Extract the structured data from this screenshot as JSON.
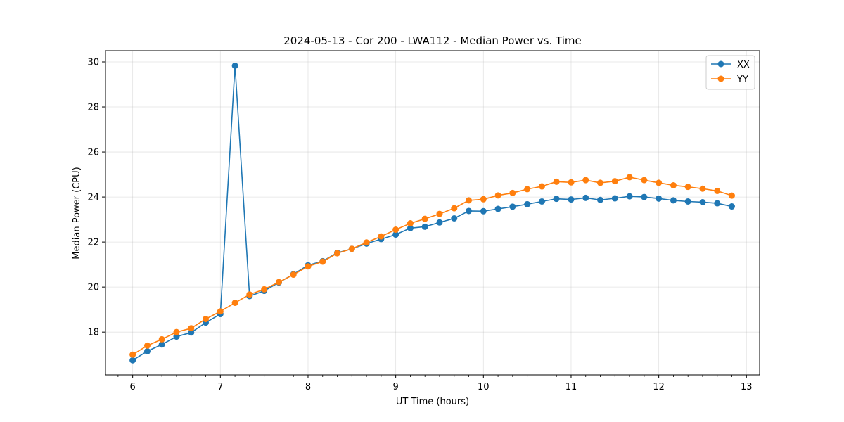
{
  "chart_data": {
    "type": "line",
    "title": "2024-05-13 - Cor 200 - LWA112 - Median Power vs. Time",
    "xlabel": "UT Time (hours)",
    "ylabel": "Median Power (CPU)",
    "xlim": [
      5.69,
      13.15
    ],
    "ylim": [
      16.1,
      30.5
    ],
    "grid": true,
    "legend_position": "top-right",
    "x_ticks": [
      6,
      7,
      8,
      9,
      10,
      11,
      12,
      13
    ],
    "y_ticks": [
      18,
      20,
      22,
      24,
      26,
      28,
      30
    ],
    "x_tick_labels": [
      "6",
      "7",
      "8",
      "9",
      "10",
      "11",
      "12",
      "13"
    ],
    "y_tick_labels": [
      "18",
      "20",
      "22",
      "24",
      "26",
      "28",
      "30"
    ],
    "x": [
      6.0,
      6.167,
      6.333,
      6.5,
      6.667,
      6.833,
      7.0,
      7.167,
      7.333,
      7.5,
      7.667,
      7.833,
      8.0,
      8.167,
      8.333,
      8.5,
      8.667,
      8.833,
      9.0,
      9.167,
      9.333,
      9.5,
      9.667,
      9.833,
      10.0,
      10.167,
      10.333,
      10.5,
      10.667,
      10.833,
      11.0,
      11.167,
      11.333,
      11.5,
      11.667,
      11.833,
      12.0,
      12.167,
      12.333,
      12.5,
      12.667,
      12.833
    ],
    "series": [
      {
        "name": "XX",
        "color": "#1f77b4",
        "values": [
          16.75,
          17.15,
          17.45,
          17.8,
          17.98,
          18.42,
          18.8,
          29.83,
          19.6,
          19.83,
          20.2,
          20.57,
          20.97,
          21.15,
          21.52,
          21.7,
          21.93,
          22.13,
          22.33,
          22.62,
          22.68,
          22.87,
          23.05,
          23.38,
          23.37,
          23.47,
          23.57,
          23.68,
          23.8,
          23.92,
          23.89,
          23.96,
          23.87,
          23.94,
          24.03,
          24.0,
          23.93,
          23.85,
          23.8,
          23.77,
          23.72,
          23.58
        ]
      },
      {
        "name": "YY",
        "color": "#ff7f0e",
        "values": [
          17.0,
          17.4,
          17.68,
          18.0,
          18.17,
          18.58,
          18.92,
          19.3,
          19.67,
          19.9,
          20.22,
          20.55,
          20.92,
          21.13,
          21.5,
          21.7,
          21.98,
          22.25,
          22.55,
          22.83,
          23.03,
          23.25,
          23.5,
          23.85,
          23.9,
          24.07,
          24.18,
          24.35,
          24.47,
          24.68,
          24.65,
          24.75,
          24.63,
          24.7,
          24.88,
          24.75,
          24.63,
          24.52,
          24.45,
          24.37,
          24.27,
          24.06
        ]
      }
    ]
  }
}
